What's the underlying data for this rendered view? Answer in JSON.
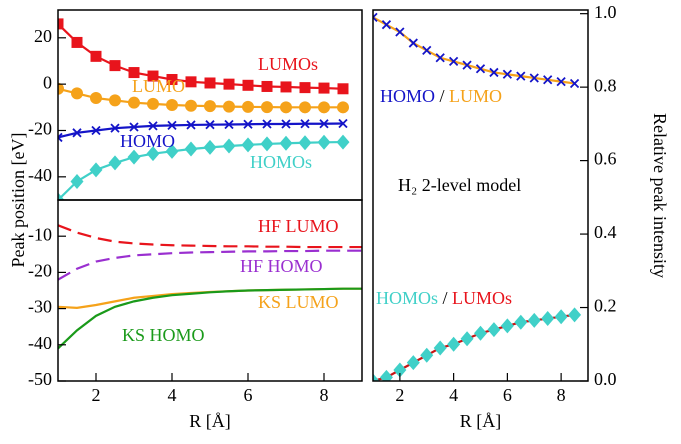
{
  "chart_data": [
    {
      "type": "line",
      "ylabel": "Peak position [eV]",
      "x": [
        1,
        1.5,
        2,
        2.5,
        3,
        3.5,
        4,
        4.5,
        5,
        5.5,
        6,
        6.5,
        7,
        7.5,
        8,
        8.5
      ],
      "xlim": [
        1,
        9
      ],
      "ylim": [
        -50,
        32
      ],
      "yticks": [
        -40,
        -20,
        0,
        20
      ],
      "y_axis_side": "left",
      "series": [
        {
          "color": "#e8141c",
          "marker": "square",
          "values": [
            26,
            18,
            12,
            8,
            5,
            3.5,
            2,
            1,
            0.5,
            0,
            -0.5,
            -1,
            -1.2,
            -1.5,
            -1.7,
            -2
          ]
        },
        {
          "color": "#f5a21a",
          "marker": "circle",
          "values": [
            -2,
            -4,
            -6,
            -7,
            -8,
            -8.5,
            -9,
            -9.3,
            -9.5,
            -9.7,
            -9.8,
            -9.9,
            -10,
            -10,
            -10,
            -10
          ]
        },
        {
          "color": "#1414c8",
          "marker": "x",
          "values": [
            -23,
            -21,
            -20,
            -19,
            -18.5,
            -18,
            -17.8,
            -17.6,
            -17.5,
            -17.4,
            -17.3,
            -17.2,
            -17.2,
            -17.1,
            -17.1,
            -17
          ]
        },
        {
          "color": "#40d0c8",
          "marker": "diamond",
          "values": [
            -50,
            -42,
            -37,
            -34,
            -31.5,
            -30,
            -29,
            -28,
            -27.3,
            -26.7,
            -26.2,
            -25.8,
            -25.5,
            -25.3,
            -25.1,
            -25
          ]
        }
      ],
      "annotations": [
        {
          "parts": [
            {
              "text": "LUMOs",
              "color": "#e8141c"
            }
          ]
        },
        {
          "parts": [
            {
              "text": "LUMO",
              "color": "#f5a21a"
            }
          ]
        },
        {
          "parts": [
            {
              "text": "HOMO",
              "color": "#1414c8"
            }
          ]
        },
        {
          "parts": [
            {
              "text": "HOMOs",
              "color": "#40d0c8"
            }
          ]
        }
      ]
    },
    {
      "type": "line",
      "xlabel": "R [Å]",
      "x": [
        1,
        1.5,
        2,
        2.5,
        3,
        3.5,
        4,
        4.5,
        5,
        5.5,
        6,
        6.5,
        7,
        7.5,
        8,
        8.5,
        9
      ],
      "xlim": [
        1,
        9
      ],
      "xticks": [
        2,
        4,
        6,
        8
      ],
      "ylim": [
        -50,
        0
      ],
      "yticks": [
        -50,
        -40,
        -30,
        -20,
        -10
      ],
      "y_axis_side": "left",
      "series": [
        {
          "color": "#e8141c",
          "dash": true,
          "values": [
            -7,
            -9,
            -10.5,
            -11.5,
            -12,
            -12.3,
            -12.5,
            -12.6,
            -12.7,
            -12.8,
            -12.8,
            -12.9,
            -12.9,
            -13,
            -13,
            -13,
            -13
          ]
        },
        {
          "color": "#9a2fd0",
          "dash": true,
          "values": [
            -22,
            -19,
            -17,
            -16,
            -15.3,
            -15,
            -14.7,
            -14.5,
            -14.4,
            -14.3,
            -14.2,
            -14.2,
            -14.1,
            -14.1,
            -14,
            -14,
            -14
          ]
        },
        {
          "color": "#f5a21a",
          "values": [
            -29.5,
            -29.8,
            -29,
            -28,
            -27,
            -26.5,
            -26,
            -25.7,
            -25.4,
            -25.2,
            -25,
            -24.9,
            -24.8,
            -24.7,
            -24.6,
            -24.5,
            -24.5
          ]
        },
        {
          "color": "#1a9a1a",
          "values": [
            -41,
            -36,
            -32,
            -29.5,
            -28,
            -27,
            -26.3,
            -25.9,
            -25.5,
            -25.2,
            -25,
            -24.9,
            -24.8,
            -24.7,
            -24.6,
            -24.5,
            -24.5
          ]
        }
      ],
      "annotations": [
        {
          "parts": [
            {
              "text": "HF LUMO",
              "color": "#e8141c"
            }
          ]
        },
        {
          "parts": [
            {
              "text": "HF HOMO",
              "color": "#9a2fd0"
            }
          ]
        },
        {
          "parts": [
            {
              "text": "KS LUMO",
              "color": "#f5a21a"
            }
          ]
        },
        {
          "parts": [
            {
              "text": "KS HOMO",
              "color": "#1a9a1a"
            }
          ]
        }
      ]
    },
    {
      "type": "line",
      "xlabel": "R [Å]",
      "ylabel": "Relative peak intensity",
      "x": [
        1,
        1.5,
        2,
        2.5,
        3,
        3.5,
        4,
        4.5,
        5,
        5.5,
        6,
        6.5,
        7,
        7.5,
        8,
        8.5
      ],
      "xlim": [
        1,
        9
      ],
      "xticks": [
        2,
        4,
        6,
        8
      ],
      "ylim": [
        0,
        1.01
      ],
      "yticks": [
        {
          "value": 0,
          "label": "0.0"
        },
        0.2,
        0.4,
        0.6,
        0.8,
        {
          "value": 1,
          "label": "1.0"
        }
      ],
      "y_axis_side": "right",
      "series": [
        {
          "color": "#f5a21a",
          "marker": "x",
          "marker_color": "#1414c8",
          "values": [
            0.99,
            0.97,
            0.95,
            0.92,
            0.9,
            0.88,
            0.87,
            0.86,
            0.85,
            0.84,
            0.835,
            0.83,
            0.825,
            0.82,
            0.815,
            0.81
          ]
        },
        {
          "color": "#c81414",
          "marker": "diamond",
          "marker_color": "#40d0c8",
          "values": [
            0,
            0.01,
            0.03,
            0.05,
            0.07,
            0.09,
            0.1,
            0.115,
            0.13,
            0.14,
            0.15,
            0.16,
            0.165,
            0.17,
            0.175,
            0.18
          ]
        }
      ],
      "annotations": [
        {
          "parts": [
            {
              "text": "HOMO",
              "color": "#1414c8"
            },
            {
              "text": " / ",
              "color": "#000000"
            },
            {
              "text": "LUMO",
              "color": "#f5a21a"
            }
          ]
        },
        {
          "parts": [
            {
              "text": "H₂ 2-level model",
              "color": "#000000"
            }
          ]
        },
        {
          "parts": [
            {
              "text": "HOMOs",
              "color": "#40d0c8"
            },
            {
              "text": " / ",
              "color": "#000000"
            },
            {
              "text": "LUMOs",
              "color": "#e8141c"
            }
          ]
        }
      ]
    }
  ]
}
